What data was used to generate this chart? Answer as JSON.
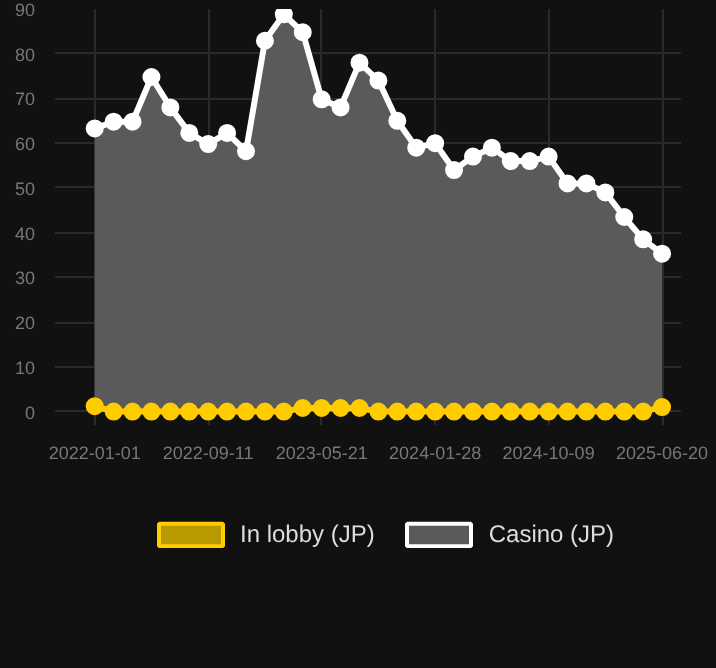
{
  "chart_data": {
    "type": "area",
    "categories": [
      "2022-01-01",
      null,
      null,
      null,
      null,
      null,
      "2022-09-11",
      null,
      null,
      null,
      null,
      null,
      "2023-05-21",
      null,
      null,
      null,
      null,
      null,
      "2024-01-28",
      null,
      null,
      null,
      null,
      null,
      "2024-10-09",
      null,
      null,
      null,
      null,
      null,
      "2025-06-20"
    ],
    "series": [
      {
        "name": "In lobby (JP)",
        "color": "#ffcc00",
        "values": [
          1.2,
          0,
          0,
          0,
          0,
          0,
          0,
          0,
          0,
          0,
          0,
          0.8,
          0.8,
          0.8,
          0.8,
          0,
          0,
          0,
          0,
          0,
          0,
          0,
          0,
          0,
          0,
          0,
          0,
          0,
          0,
          0,
          1
        ]
      },
      {
        "name": "Casino (JP)",
        "color": "#ffffff",
        "values": [
          63.3,
          64.8,
          64.8,
          74.8,
          68,
          62.3,
          59.8,
          62.3,
          58.2,
          82.9,
          88.8,
          84.8,
          69.8,
          68,
          78,
          74,
          65,
          59,
          60,
          54,
          57,
          59,
          56,
          56,
          57,
          51,
          51,
          49,
          43.5,
          38.5,
          35.3
        ]
      }
    ],
    "ylim": [
      -3,
      90
    ],
    "yticks": [
      0,
      10,
      20,
      30,
      40,
      50,
      60,
      70,
      80,
      90
    ],
    "grid": true,
    "legend": "bottom",
    "marker": "circle"
  }
}
